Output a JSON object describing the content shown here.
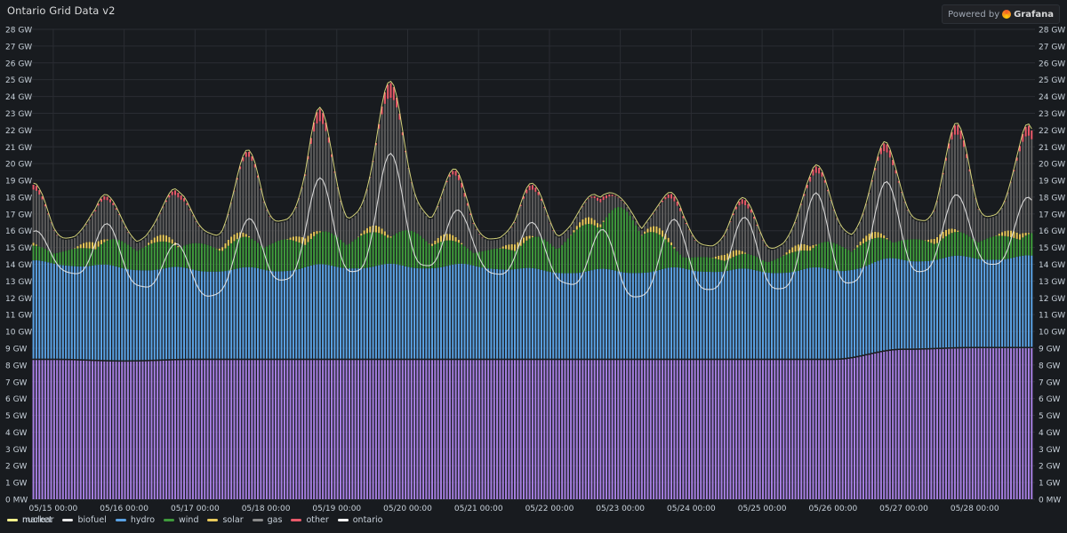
{
  "panel": {
    "title": "Ontario Grid Data v2",
    "powered_by": "Powered by",
    "brand": "Grafana"
  },
  "chart_data": {
    "type": "bar",
    "stacked": true,
    "x_tick_labels": [
      "05/15 00:00",
      "05/16 00:00",
      "05/17 00:00",
      "05/18 00:00",
      "05/19 00:00",
      "05/20 00:00",
      "05/21 00:00",
      "05/22 00:00",
      "05/23 00:00",
      "05/24 00:00",
      "05/25 00:00",
      "05/26 00:00",
      "05/27 00:00",
      "05/28 00:00"
    ],
    "y_tick_labels": [
      "0 MW",
      "1 GW",
      "2 GW",
      "3 GW",
      "4 GW",
      "5 GW",
      "6 GW",
      "7 GW",
      "8 GW",
      "9 GW",
      "10 GW",
      "11 GW",
      "12 GW",
      "13 GW",
      "14 GW",
      "15 GW",
      "16 GW",
      "17 GW",
      "18 GW",
      "19 GW",
      "20 GW",
      "21 GW",
      "22 GW",
      "23 GW",
      "24 GW",
      "25 GW",
      "26 GW",
      "27 GW",
      "28 GW"
    ],
    "ylim_gw": [
      0,
      28
    ],
    "x_range_days": [
      -0.3,
      13.85
    ],
    "grid": true,
    "legend_position": "bottom",
    "colors": {
      "nuclear": "#a57ee0",
      "biofuel": "#1f1f1f",
      "hydro": "#5aa1e3",
      "wind": "#3f9a3c",
      "solar": "#e8c95b",
      "gas": "#5b5b5b",
      "other": "#e85a6a",
      "ontario": "#e8e8e8",
      "market": "#f2f08a"
    },
    "series_order": [
      "nuclear",
      "biofuel",
      "hydro",
      "wind",
      "solar",
      "gas",
      "other"
    ],
    "series": [
      {
        "name": "nuclear",
        "day_values_gw": [
          8.3,
          8.2,
          8.3,
          8.3,
          8.3,
          8.3,
          8.3,
          8.3,
          8.3,
          8.3,
          8.3,
          8.3,
          8.9,
          9.0
        ]
      },
      {
        "name": "biofuel",
        "day_values_gw": [
          0.1,
          0.1,
          0.1,
          0.1,
          0.1,
          0.1,
          0.1,
          0.1,
          0.1,
          0.1,
          0.1,
          0.1,
          0.1,
          0.1
        ]
      },
      {
        "name": "hydro",
        "day_values_gw": [
          5.8,
          5.6,
          5.4,
          5.4,
          5.6,
          5.6,
          5.6,
          5.3,
          5.3,
          5.4,
          5.3,
          5.4,
          5.4,
          5.4
        ]
      },
      {
        "name": "wind",
        "day_values_gw": [
          0.8,
          1.5,
          1.5,
          1.7,
          1.8,
          2.0,
          1.0,
          1.8,
          3.5,
          0.8,
          0.8,
          1.5,
          1.2,
          1.3
        ]
      },
      {
        "name": "solar",
        "day_min_gw": 0,
        "day_peak_gw": 0.4
      },
      {
        "name": "gas",
        "day_peak_gw": [
          3.2,
          2.2,
          3.0,
          5.0,
          6.8,
          8.5,
          2.5,
          2.8,
          1.0,
          3.0,
          2.8,
          4.5,
          5.2,
          5.8
        ]
      },
      {
        "name": "other",
        "day_peak_gw": [
          0.3,
          0.2,
          0.3,
          0.3,
          0.8,
          0.9,
          0.2,
          0.3,
          0.2,
          0.3,
          0.3,
          0.4,
          0.5,
          0.6
        ]
      },
      {
        "name": "ontario",
        "day_min_gw": [
          13.6,
          12.8,
          12.0,
          13.0,
          13.5,
          14.0,
          13.5,
          13.0,
          12.0,
          12.5,
          12.5,
          12.8,
          13.5,
          14.0
        ],
        "day_peak_gw": [
          16.0,
          16.5,
          15.0,
          17.0,
          19.5,
          20.8,
          16.5,
          16.5,
          16.0,
          16.8,
          16.8,
          18.5,
          19.0,
          18.0
        ]
      },
      {
        "name": "market",
        "day_peak_gw": [
          19.3,
          18.9,
          18.2,
          19.7,
          22.3,
          24.0,
          18.5,
          18.2,
          18.6,
          17.6,
          17.9,
          19.4,
          21.2,
          20.6
        ]
      }
    ]
  },
  "legend": {
    "nuclear": "nuclear",
    "biofuel": "biofuel",
    "hydro": "hydro",
    "wind": "wind",
    "solar": "solar",
    "gas": "gas",
    "other": "other",
    "ontario": "ontario",
    "market": "market"
  }
}
